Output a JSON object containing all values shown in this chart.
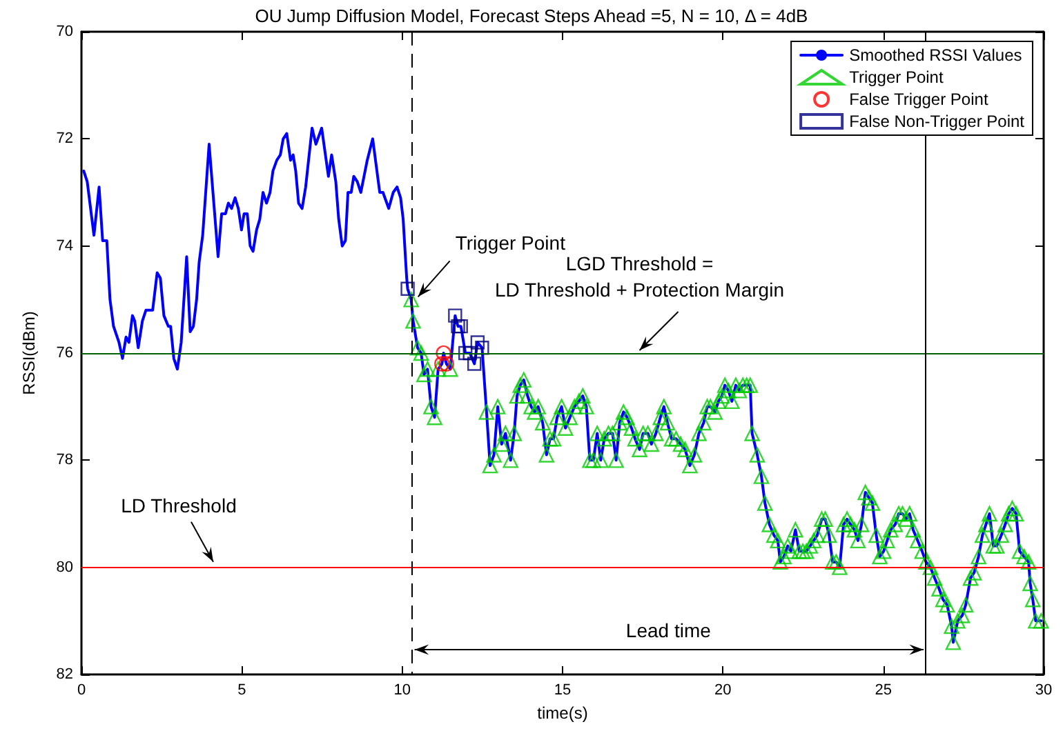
{
  "chart_data": {
    "type": "line",
    "title": "OU Jump Diffusion Model, Forecast Steps Ahead =5, N = 10, Δ = 4dB",
    "xlabel": "time(s)",
    "ylabel": "RSSI(dBm)",
    "xlim": [
      0,
      30
    ],
    "xticks": [
      0,
      5,
      10,
      15,
      20,
      25,
      30
    ],
    "ylim": [
      82,
      70
    ],
    "yticks": [
      70,
      72,
      74,
      76,
      78,
      80,
      82
    ],
    "grid": false,
    "legend": "top right",
    "series": [
      {
        "name": "Smoothed RSSI Values",
        "color": "#0000ff",
        "marker": "none",
        "line_style": "solid",
        "x": [
          0.07,
          0.18,
          0.39,
          0.55,
          0.66,
          0.79,
          0.89,
          1.0,
          1.17,
          1.28,
          1.39,
          1.48,
          1.59,
          1.66,
          1.77,
          1.9,
          2.01,
          2.13,
          2.22,
          2.36,
          2.46,
          2.57,
          2.71,
          2.78,
          2.88,
          2.99,
          3.11,
          3.28,
          3.39,
          3.49,
          3.59,
          3.67,
          3.78,
          3.98,
          4.26,
          4.37,
          4.49,
          4.58,
          4.68,
          4.79,
          4.89,
          4.99,
          5.07,
          5.17,
          5.26,
          5.35,
          5.46,
          5.56,
          5.66,
          5.77,
          5.88,
          5.97,
          6.09,
          6.2,
          6.29,
          6.4,
          6.52,
          6.6,
          6.68,
          6.77,
          6.88,
          6.99,
          7.19,
          7.31,
          7.49,
          7.7,
          7.8,
          7.93,
          8.02,
          8.13,
          8.23,
          8.31,
          8.41,
          8.49,
          8.6,
          8.71,
          8.91,
          9.08,
          9.3,
          9.4,
          9.58,
          9.72,
          9.84,
          9.95,
          10.03,
          10.14,
          10.17,
          10.28,
          10.34,
          10.48,
          10.59,
          10.68,
          10.79,
          10.9,
          11.01,
          11.12,
          11.24,
          11.29,
          11.38,
          11.5,
          11.65,
          11.74,
          11.83,
          11.97,
          12.11,
          12.25,
          12.35,
          12.49,
          12.63,
          12.74,
          12.86,
          12.98,
          13.1,
          13.22,
          13.38,
          13.49,
          13.58,
          13.68,
          13.79,
          13.91,
          14.02,
          14.13,
          14.24,
          14.38,
          14.5,
          14.61,
          14.72,
          14.83,
          14.97,
          15.09,
          15.23,
          15.37,
          15.51,
          15.63,
          15.74,
          15.85,
          15.96,
          16.08,
          16.19,
          16.3,
          16.43,
          16.56,
          16.67,
          16.78,
          16.9,
          17.01,
          17.15,
          17.26,
          17.4,
          17.51,
          17.66,
          17.77,
          17.91,
          18.05,
          18.16,
          18.27,
          18.4,
          18.54,
          18.68,
          18.82,
          18.97,
          19.11,
          19.25,
          19.4,
          19.51,
          19.61,
          19.75,
          19.86,
          19.97,
          20.06,
          20.17,
          20.28,
          20.4,
          20.51,
          20.62,
          20.74,
          20.85,
          20.91,
          21.07,
          21.2,
          21.31,
          21.45,
          21.59,
          21.71,
          21.79,
          21.9,
          22.02,
          22.12,
          22.26,
          22.38,
          22.49,
          22.6,
          22.72,
          22.83,
          22.94,
          23.08,
          23.19,
          23.31,
          23.42,
          23.53,
          23.64,
          23.76,
          23.87,
          23.98,
          24.1,
          24.21,
          24.32,
          24.44,
          24.55,
          24.66,
          24.78,
          24.89,
          25.01,
          25.12,
          25.23,
          25.37,
          25.48,
          25.6,
          25.71,
          25.82,
          25.93,
          26.07,
          26.21,
          26.33,
          26.47,
          26.6,
          26.74,
          26.86,
          26.99,
          27.13,
          27.18,
          27.32,
          27.46,
          27.57,
          27.72,
          27.83,
          27.97,
          28.09,
          28.2,
          28.31,
          28.43,
          28.54,
          28.68,
          28.8,
          28.91,
          29.02,
          29.14,
          29.25,
          29.39,
          29.53,
          29.58,
          29.66,
          29.75,
          29.92
        ],
        "values": [
          72.6,
          72.8,
          73.8,
          72.9,
          73.9,
          73.9,
          75.0,
          75.5,
          75.8,
          76.1,
          75.7,
          75.8,
          75.3,
          75.4,
          75.9,
          75.4,
          75.2,
          75.2,
          75.2,
          74.5,
          74.6,
          75.3,
          75.5,
          75.5,
          76.1,
          76.3,
          75.8,
          74.2,
          75.6,
          75.5,
          75.0,
          74.3,
          73.8,
          72.1,
          74.2,
          73.4,
          73.4,
          73.2,
          73.3,
          73.1,
          73.3,
          73.7,
          73.4,
          73.4,
          74.0,
          74.1,
          73.7,
          73.5,
          73.0,
          73.2,
          73.0,
          72.6,
          72.4,
          72.3,
          72.0,
          71.9,
          72.4,
          72.3,
          72.6,
          73.2,
          73.3,
          72.9,
          71.8,
          72.1,
          71.8,
          72.7,
          72.3,
          72.8,
          73.5,
          74.0,
          73.9,
          73.0,
          73.0,
          72.7,
          72.8,
          73.0,
          72.4,
          72.0,
          73.0,
          73.0,
          73.3,
          73.0,
          72.9,
          73.1,
          73.5,
          74.6,
          74.8,
          75.0,
          75.4,
          75.9,
          76.0,
          76.4,
          76.3,
          77.0,
          77.2,
          76.3,
          76.2,
          76.0,
          76.2,
          76.3,
          75.3,
          75.5,
          75.5,
          76.0,
          76.0,
          76.2,
          75.8,
          75.9,
          77.1,
          78.1,
          77.9,
          77.0,
          77.7,
          77.5,
          78.0,
          77.5,
          76.8,
          76.6,
          76.5,
          76.8,
          77.0,
          77.1,
          77.0,
          77.3,
          77.9,
          77.6,
          77.6,
          77.2,
          77.0,
          77.4,
          77.2,
          77.0,
          76.9,
          76.8,
          77.0,
          78.0,
          78.0,
          77.5,
          78.0,
          77.6,
          77.5,
          77.5,
          78.0,
          77.3,
          77.1,
          77.2,
          77.4,
          77.6,
          77.8,
          77.5,
          77.5,
          77.7,
          77.5,
          77.2,
          77.0,
          77.3,
          77.6,
          77.6,
          77.7,
          77.8,
          78.1,
          77.9,
          77.5,
          77.3,
          77.0,
          77.0,
          77.1,
          76.9,
          76.8,
          76.6,
          76.7,
          76.9,
          76.6,
          76.7,
          76.6,
          76.6,
          76.6,
          77.5,
          77.9,
          78.3,
          78.8,
          79.2,
          79.4,
          79.5,
          79.9,
          79.8,
          79.6,
          79.7,
          79.3,
          79.7,
          79.7,
          79.7,
          79.6,
          79.5,
          79.4,
          79.1,
          79.1,
          79.4,
          79.9,
          79.9,
          80.0,
          79.2,
          79.1,
          79.2,
          79.3,
          79.5,
          79.2,
          78.6,
          78.7,
          78.8,
          79.4,
          79.8,
          79.7,
          79.5,
          79.3,
          79.2,
          79.0,
          79.0,
          79.1,
          79.0,
          79.3,
          79.5,
          79.7,
          79.9,
          80.0,
          80.2,
          80.4,
          80.6,
          80.7,
          81.1,
          81.4,
          81.0,
          80.9,
          80.7,
          80.2,
          80.1,
          79.8,
          79.4,
          79.2,
          79.0,
          79.6,
          79.6,
          79.4,
          79.2,
          79.0,
          78.9,
          79.0,
          79.7,
          79.8,
          79.9,
          80.3,
          80.6,
          81.0,
          81.0
        ]
      },
      {
        "name": "Trigger Point",
        "type": "scatter",
        "color": "#00cc00",
        "marker": "triangle",
        "x": [
          10.28,
          10.34,
          10.48,
          10.59,
          10.68,
          10.79,
          10.9,
          11.01,
          11.12,
          11.5,
          12.63,
          12.74,
          12.86,
          12.98,
          13.1,
          13.22,
          13.38,
          13.49,
          13.58,
          13.68,
          13.79,
          13.91,
          14.02,
          14.13,
          14.24,
          14.38,
          14.5,
          14.61,
          14.72,
          14.83,
          14.97,
          15.09,
          15.23,
          15.37,
          15.51,
          15.63,
          15.74,
          15.85,
          15.96,
          16.08,
          16.19,
          16.3,
          16.43,
          16.56,
          16.67,
          16.78,
          16.9,
          17.01,
          17.15,
          17.26,
          17.4,
          17.51,
          17.66,
          17.77,
          17.91,
          18.05,
          18.16,
          18.27,
          18.4,
          18.54,
          18.68,
          18.82,
          18.97,
          19.11,
          19.25,
          19.4,
          19.51,
          19.61,
          19.75,
          19.86,
          19.97,
          20.06,
          20.17,
          20.28,
          20.4,
          20.51,
          20.62,
          20.74,
          20.85,
          20.91,
          21.07,
          21.2,
          21.31,
          21.45,
          21.59,
          21.71,
          21.79,
          21.9,
          22.02,
          22.12,
          22.26,
          22.38,
          22.49,
          22.6,
          22.72,
          22.83,
          22.94,
          23.08,
          23.19,
          23.31,
          23.42,
          23.53,
          23.64,
          23.76,
          23.87,
          23.98,
          24.1,
          24.21,
          24.32,
          24.44,
          24.55,
          24.66,
          24.78,
          24.89,
          25.01,
          25.12,
          25.23,
          25.37,
          25.48,
          25.6,
          25.71,
          25.82,
          25.93,
          26.07,
          26.21,
          26.33,
          26.47,
          26.6,
          26.74,
          26.86,
          26.99,
          27.13,
          27.18,
          27.32,
          27.46,
          27.57,
          27.72,
          27.83,
          27.97,
          28.09,
          28.2,
          28.31,
          28.43,
          28.54,
          28.68,
          28.8,
          28.91,
          29.02,
          29.14,
          29.25,
          29.39,
          29.53,
          29.58,
          29.66,
          29.75,
          29.92
        ],
        "values": [
          75.0,
          75.4,
          75.9,
          76.0,
          76.4,
          76.3,
          77.0,
          77.2,
          76.3,
          76.3,
          77.1,
          78.1,
          77.9,
          77.0,
          77.7,
          77.5,
          78.0,
          77.5,
          76.8,
          76.6,
          76.5,
          76.8,
          77.0,
          77.1,
          77.0,
          77.3,
          77.9,
          77.6,
          77.6,
          77.2,
          77.0,
          77.4,
          77.2,
          77.0,
          76.9,
          76.8,
          77.0,
          78.0,
          78.0,
          77.5,
          78.0,
          77.6,
          77.5,
          77.5,
          78.0,
          77.3,
          77.1,
          77.2,
          77.4,
          77.6,
          77.8,
          77.5,
          77.5,
          77.7,
          77.5,
          77.2,
          77.0,
          77.3,
          77.6,
          77.6,
          77.7,
          77.8,
          78.1,
          77.9,
          77.5,
          77.3,
          77.0,
          77.0,
          77.1,
          76.9,
          76.8,
          76.6,
          76.7,
          76.9,
          76.6,
          76.7,
          76.6,
          76.6,
          76.6,
          77.5,
          77.9,
          78.3,
          78.8,
          79.2,
          79.4,
          79.5,
          79.9,
          79.8,
          79.6,
          79.7,
          79.3,
          79.7,
          79.7,
          79.7,
          79.6,
          79.5,
          79.4,
          79.1,
          79.1,
          79.4,
          79.9,
          79.9,
          80.0,
          79.2,
          79.1,
          79.2,
          79.3,
          79.5,
          79.2,
          78.6,
          78.7,
          78.8,
          79.4,
          79.8,
          79.7,
          79.5,
          79.3,
          79.2,
          79.0,
          79.0,
          79.1,
          79.0,
          79.3,
          79.5,
          79.7,
          79.9,
          80.0,
          80.2,
          80.4,
          80.6,
          80.7,
          81.1,
          81.4,
          81.0,
          80.9,
          80.7,
          80.2,
          80.1,
          79.8,
          79.4,
          79.2,
          79.0,
          79.6,
          79.6,
          79.4,
          79.2,
          79.0,
          78.9,
          79.0,
          79.7,
          79.8,
          79.9,
          80.3,
          80.6,
          81.0,
          81.0
        ]
      },
      {
        "name": "False Trigger Point",
        "type": "scatter",
        "color": "#ff0000",
        "marker": "circle",
        "x": [
          11.24,
          11.29,
          11.38
        ],
        "values": [
          76.2,
          76.0,
          76.2
        ]
      },
      {
        "name": "False Non-Trigger Point",
        "type": "scatter",
        "color": "#000080",
        "marker": "square",
        "x": [
          10.17,
          11.65,
          11.74,
          11.83,
          11.97,
          12.11,
          12.25,
          12.35,
          12.49
        ],
        "values": [
          74.8,
          75.3,
          75.5,
          75.5,
          76.0,
          76.0,
          76.2,
          75.8,
          75.9
        ]
      }
    ],
    "ref_lines": [
      {
        "axis": "y",
        "value": 76,
        "label": "LGD Threshold =\nLD Threshold + Protection Margin",
        "color": "#006400",
        "line_style": "solid"
      },
      {
        "axis": "y",
        "value": 80,
        "label": "LD Threshold",
        "color": "#ff0000",
        "line_style": "solid"
      },
      {
        "axis": "x",
        "value": 10.3,
        "color": "#000000",
        "line_style": "dashed"
      },
      {
        "axis": "x",
        "value": 26.3,
        "color": "#000000",
        "line_style": "solid"
      }
    ],
    "annotations": [
      {
        "text": "Trigger Point",
        "x": 10.28,
        "y": 75.0
      },
      "Lead time"
    ]
  }
}
